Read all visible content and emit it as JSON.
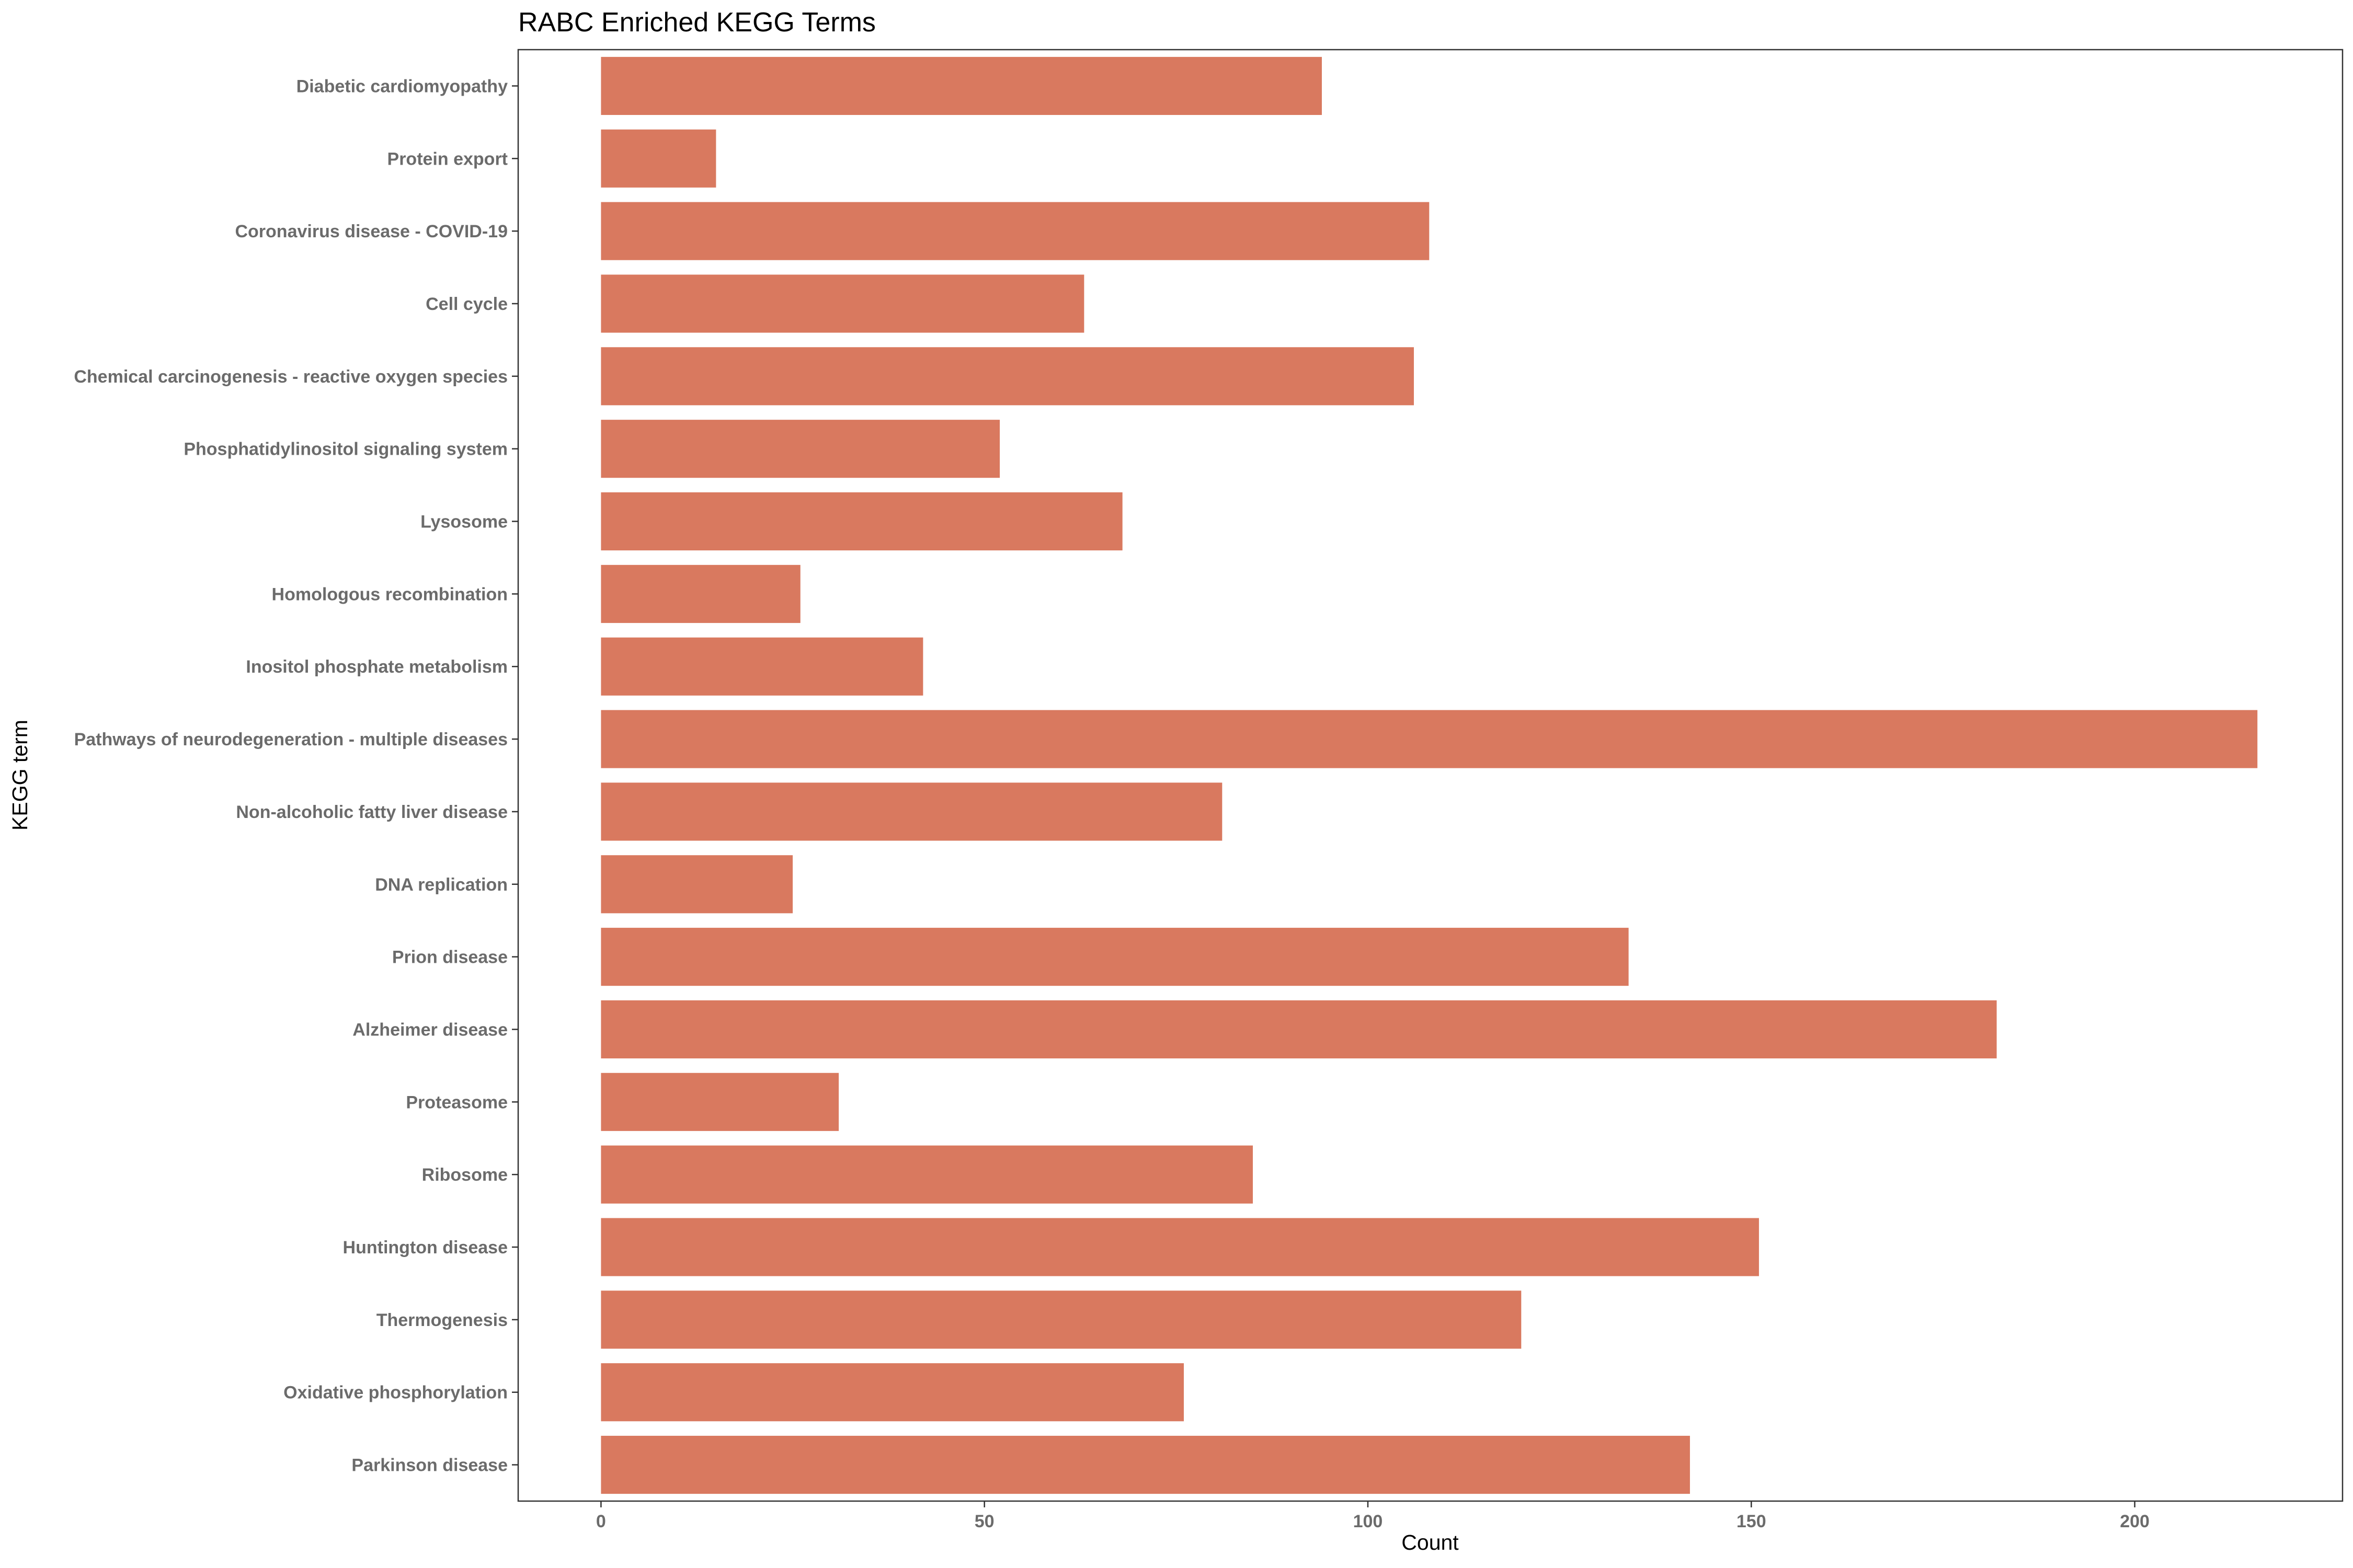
{
  "chart_data": {
    "type": "bar",
    "orientation": "horizontal",
    "title": "RABC Enriched KEGG Terms",
    "xlabel": "Count",
    "ylabel": "KEGG term",
    "xlim": [
      -10.8,
      227.1
    ],
    "xticks": [
      0,
      50,
      100,
      150,
      200
    ],
    "grid": false,
    "bar_color": "#D9795F",
    "categories": [
      "Diabetic cardiomyopathy",
      "Protein export",
      "Coronavirus disease - COVID-19",
      "Cell cycle",
      "Chemical carcinogenesis - reactive oxygen species",
      "Phosphatidylinositol signaling system",
      "Lysosome",
      "Homologous recombination",
      "Inositol phosphate metabolism",
      "Pathways of neurodegeneration - multiple diseases",
      "Non-alcoholic fatty liver disease",
      "DNA replication",
      "Prion disease",
      "Alzheimer disease",
      "Proteasome",
      "Ribosome",
      "Huntington disease",
      "Thermogenesis",
      "Oxidative phosphorylation",
      "Parkinson disease"
    ],
    "values": [
      94,
      15,
      108,
      63,
      106,
      52,
      68,
      26,
      42,
      216,
      81,
      25,
      134,
      182,
      31,
      85,
      151,
      120,
      76,
      142
    ]
  }
}
